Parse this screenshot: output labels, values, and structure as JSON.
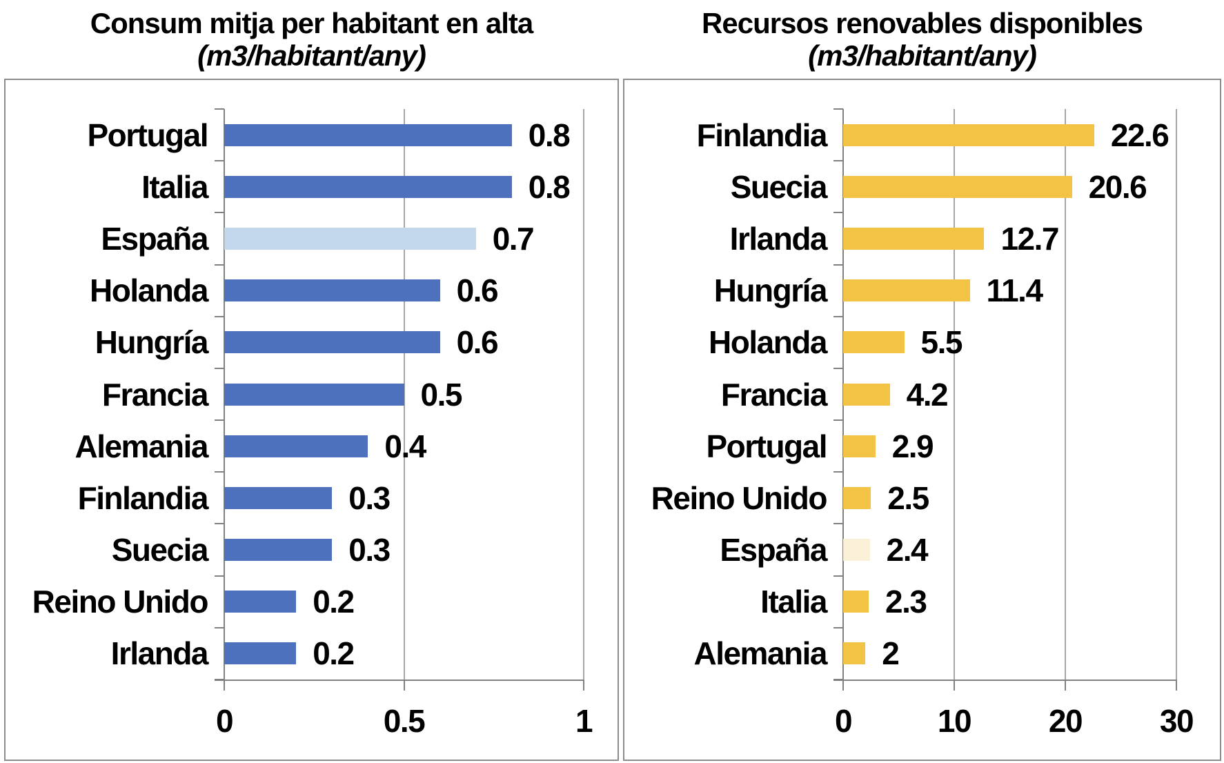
{
  "chart_data": [
    {
      "type": "bar",
      "orientation": "horizontal",
      "title": "Consum mitja per habitant en alta",
      "subtitle": "(m3/habitant/any)",
      "categories": [
        "Portugal",
        "Italia",
        "España",
        "Holanda",
        "Hungría",
        "Francia",
        "Alemania",
        "Finlandia",
        "Suecia",
        "Reino Unido",
        "Irlanda"
      ],
      "values": [
        0.8,
        0.8,
        0.7,
        0.6,
        0.6,
        0.5,
        0.4,
        0.3,
        0.3,
        0.2,
        0.2
      ],
      "value_labels": [
        "0.8",
        "0.8",
        "0.7",
        "0.6",
        "0.6",
        "0.5",
        "0.4",
        "0.3",
        "0.3",
        "0.2",
        "0.2"
      ],
      "highlight_category": "España",
      "bar_color": "#4E71BE",
      "highlight_color": "#C3D7ED",
      "xlim": [
        0,
        1
      ],
      "x_ticks": [
        {
          "value": 0,
          "label": "0"
        },
        {
          "value": 0.5,
          "label": "0.5"
        },
        {
          "value": 1,
          "label": "1"
        }
      ],
      "grid": true
    },
    {
      "type": "bar",
      "orientation": "horizontal",
      "title": "Recursos renovables disponibles",
      "subtitle": "(m3/habitant/any)",
      "categories": [
        "Finlandia",
        "Suecia",
        "Irlanda",
        "Hungría",
        "Holanda",
        "Francia",
        "Portugal",
        "Reino Unido",
        "España",
        "Italia",
        "Alemania"
      ],
      "values": [
        22.6,
        20.6,
        12.7,
        11.4,
        5.5,
        4.2,
        2.9,
        2.5,
        2.4,
        2.3,
        2
      ],
      "value_labels": [
        "22.6",
        "20.6",
        "12.7",
        "11.4",
        "5.5",
        "4.2",
        "2.9",
        "2.5",
        "2.4",
        "2.3",
        "2"
      ],
      "highlight_category": "España",
      "bar_color": "#F2C345",
      "highlight_color": "#FAF0D8",
      "xlim": [
        0,
        30
      ],
      "x_ticks": [
        {
          "value": 0,
          "label": "0"
        },
        {
          "value": 10,
          "label": "10"
        },
        {
          "value": 20,
          "label": "20"
        },
        {
          "value": 30,
          "label": "30"
        }
      ],
      "grid": true
    }
  ],
  "style": {
    "axis_color": "#808080",
    "gridline_color": "#A6A6A6",
    "border_color": "#8C8C8C",
    "text_color": "#000000"
  }
}
